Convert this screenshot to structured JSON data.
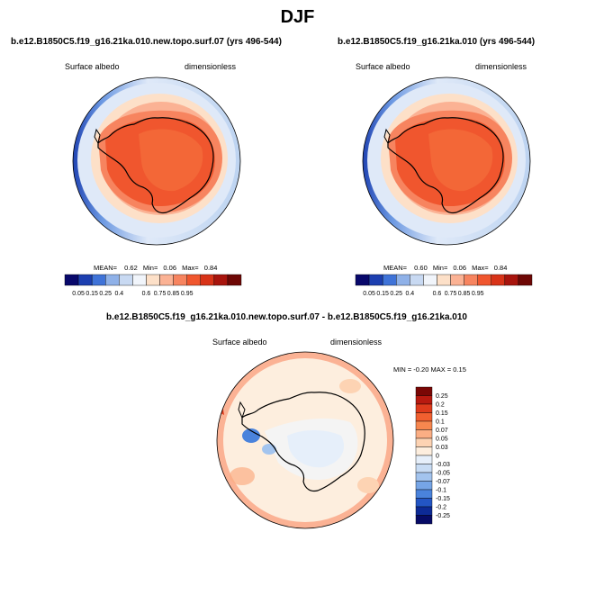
{
  "figure": {
    "title": "DJF"
  },
  "panels": [
    {
      "title": "b.e12.B1850C5.f19_g16.21ka.010.new.topo.surf.07 (yrs 496-544)",
      "left_label": "Surface albedo",
      "right_label": "dimensionless",
      "stats": {
        "mean_label": "MEAN=",
        "mean": "0.62",
        "min_label": "Min=",
        "min": "0.06",
        "max_label": "Max=",
        "max": "0.84"
      }
    },
    {
      "title": "b.e12.B1850C5.f19_g16.21ka.010 (yrs 496-544)",
      "left_label": "Surface albedo",
      "right_label": "dimensionless",
      "stats": {
        "mean_label": "MEAN=",
        "mean": "0.60",
        "min_label": "Min=",
        "min": "0.06",
        "max_label": "Max=",
        "max": "0.84"
      }
    }
  ],
  "diff_panel": {
    "title": "b.e12.B1850C5.f19_g16.21ka.010.new.topo.surf.07 - b.e12.B1850C5.f19_g16.21ka.010",
    "left_label": "Surface albedo",
    "right_label": "dimensionless",
    "minmax": "MIN = -0.20 MAX =  0.15"
  },
  "colorbars": {
    "albedo_labels": [
      "0.05",
      "0.15",
      "0.25",
      "0.4",
      "0.6",
      "0.75",
      "0.85",
      "0.95"
    ],
    "albedo_colors": [
      "#08086b",
      "#1c3fb0",
      "#3f73d8",
      "#8fb1e8",
      "#c8d9f2",
      "#f1f5fb",
      "#fde0c8",
      "#fbb294",
      "#f7845f",
      "#f0562e",
      "#d83318",
      "#a8140d",
      "#6e0705"
    ],
    "diff_labels": [
      "0.25",
      "0.2",
      "0.15",
      "0.1",
      "0.07",
      "0.05",
      "0.03",
      "0",
      "-0.03",
      "-0.05",
      "-0.07",
      "-0.1",
      "-0.15",
      "-0.2",
      "-0.25"
    ],
    "diff_colors": [
      "#7a0705",
      "#b81a10",
      "#de3b1c",
      "#f16030",
      "#f7874f",
      "#fbae84",
      "#fdd3b3",
      "#fdeede",
      "#e6effa",
      "#c8dcf4",
      "#a3c4ee",
      "#76a5e6",
      "#4a83dc",
      "#2355c4",
      "#0d2a96",
      "#070b66"
    ]
  }
}
